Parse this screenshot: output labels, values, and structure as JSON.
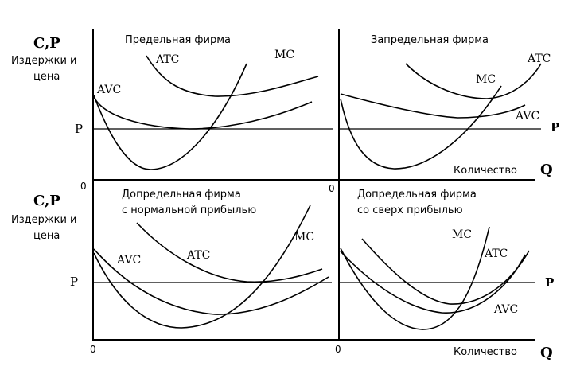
{
  "axis_top": {
    "y_symbol": "C,P",
    "y_line1": "Издержки и",
    "y_line2": "цена",
    "x_label": "Количество",
    "x_symbol": "Q",
    "origin_left": "0",
    "origin_right": "0"
  },
  "axis_bottom": {
    "y_symbol": "C,P",
    "y_line1": "Издержки и",
    "y_line2": "цена",
    "x_label": "Количество",
    "x_symbol": "Q",
    "origin_left": "0",
    "origin_right": "0"
  },
  "panels": {
    "top_left": {
      "title_line1": "Предельная фирма",
      "title_line2": "",
      "atc": "ATC",
      "mc": "MC",
      "avc": "AVC",
      "p": "P"
    },
    "top_right": {
      "title_line1": "Запредельная фирма",
      "title_line2": "",
      "atc": "ATC",
      "mc": "MC",
      "avc": "AVC",
      "p": "P"
    },
    "bottom_left": {
      "title_line1": "Допредельная фирма",
      "title_line2": "с нормальной прибылью",
      "atc": "ATC",
      "mc": "MC",
      "avc": "AVC",
      "p": "P"
    },
    "bottom_right": {
      "title_line1": "Допредельная фирма",
      "title_line2": "со сверх прибылью",
      "atc": "ATC",
      "mc": "MC",
      "avc": "AVC",
      "p": "P"
    }
  }
}
